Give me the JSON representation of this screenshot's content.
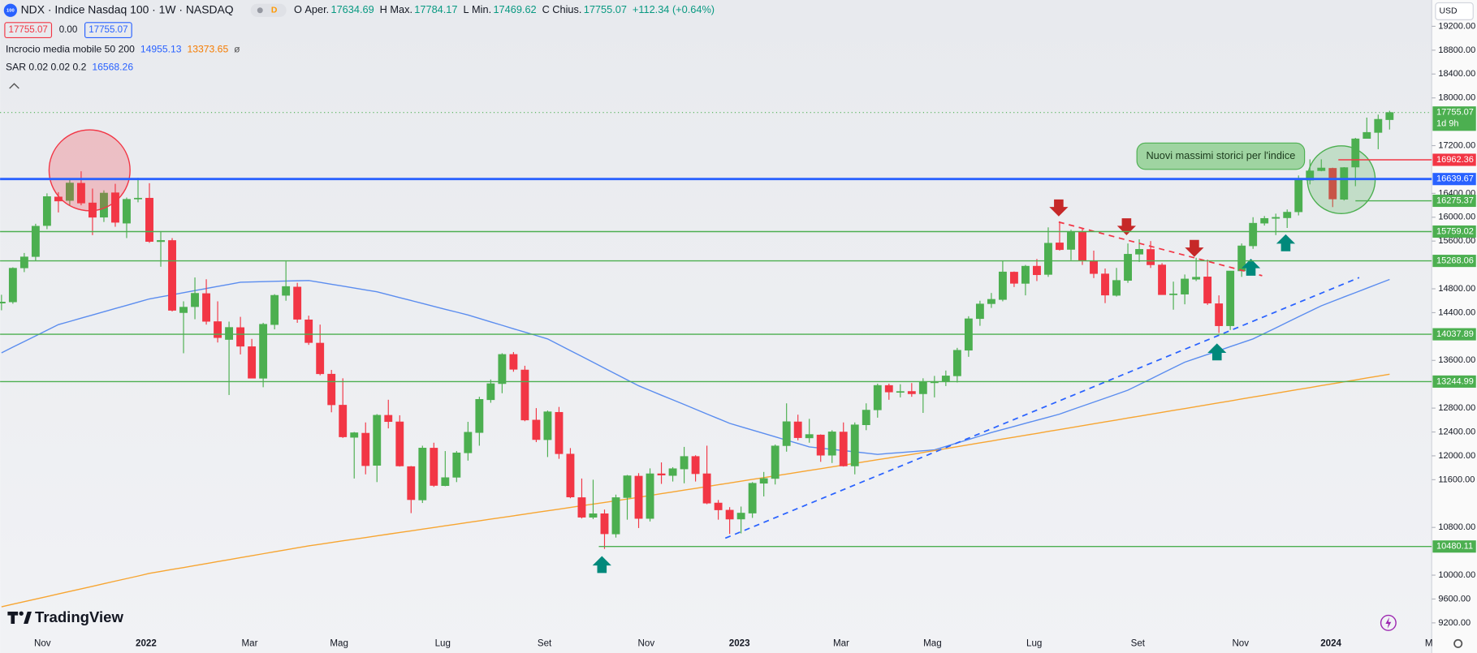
{
  "chart_data": {
    "type": "candlestick",
    "symbol": "NDX · Indice Nasdaq 100 · 1W · NASDAQ",
    "ohlc_legend": [
      {
        "key": "O",
        "label": "Aper.",
        "value": 17634.69
      },
      {
        "key": "H",
        "label": "Max.",
        "value": 17784.17
      },
      {
        "key": "L",
        "label": "Min.",
        "value": 17469.62
      },
      {
        "key": "C",
        "label": "Chius.",
        "value": 17755.07
      }
    ],
    "change": "+112.34 (+0.64%)",
    "price_boxes": [
      "17755.07",
      "0.00",
      "17755.07"
    ],
    "indicators": [
      {
        "name": "Incrocio media mobile 50 200",
        "values": [
          "14955.13",
          "13373.65",
          "ø"
        ],
        "colors": [
          "#2962ff",
          "#f57c00",
          "#555"
        ]
      },
      {
        "name": "SAR 0.02 0.02 0.2",
        "values": [
          "16568.26"
        ],
        "colors": [
          "#2962ff"
        ]
      }
    ],
    "currency": "USD",
    "annotation": "Nuovi massimi storici per l'indice",
    "brand": "TradingView",
    "x_labels": [
      "Nov",
      "2022",
      "Mar",
      "Mag",
      "Lug",
      "Set",
      "Nov",
      "2023",
      "Mar",
      "Mag",
      "Lug",
      "Set",
      "Nov",
      "2024",
      "M"
    ],
    "ylim": [
      8916,
      19641
    ],
    "yticks": [
      {
        "value": 19200,
        "label": "19200.00"
      },
      {
        "value": 18800,
        "label": "18800.00"
      },
      {
        "value": 18400,
        "label": "18400.00"
      },
      {
        "value": 18000,
        "label": "18000.00"
      },
      {
        "value": 17200,
        "label": "17200.00"
      },
      {
        "value": 16400,
        "label": "16400.00"
      },
      {
        "value": 16000,
        "label": "16000.00"
      },
      {
        "value": 15600,
        "label": "15600.00"
      },
      {
        "value": 14800,
        "label": "14800.00"
      },
      {
        "value": 14400,
        "label": "14400.00"
      },
      {
        "value": 13600,
        "label": "13600.00"
      },
      {
        "value": 12800,
        "label": "12800.00"
      },
      {
        "value": 12400,
        "label": "12400.00"
      },
      {
        "value": 12000,
        "label": "12000.00"
      },
      {
        "value": 11600,
        "label": "11600.00"
      },
      {
        "value": 10800,
        "label": "10800.00"
      },
      {
        "value": 10000,
        "label": "10000.00"
      },
      {
        "value": 9600,
        "label": "9600.00"
      },
      {
        "value": 9200,
        "label": "9200.00"
      }
    ],
    "up_color": "#4caf50",
    "down_color": "#f23645",
    "candles": [
      [
        14560,
        14700,
        14440,
        14579
      ],
      [
        14580,
        15160,
        14550,
        15146
      ],
      [
        15150,
        15400,
        15080,
        15335
      ],
      [
        15340,
        15890,
        15270,
        15850
      ],
      [
        15860,
        16400,
        15800,
        16346
      ],
      [
        16340,
        16420,
        16080,
        16271
      ],
      [
        16280,
        16640,
        16190,
        16574
      ],
      [
        16570,
        16770,
        16200,
        16237
      ],
      [
        16240,
        16480,
        15700,
        15999
      ],
      [
        16000,
        16450,
        15920,
        16405
      ],
      [
        16410,
        16560,
        15840,
        15914
      ],
      [
        15900,
        16330,
        15650,
        16301
      ],
      [
        16310,
        16660,
        16250,
        16320
      ],
      [
        16320,
        16570,
        15570,
        15593
      ],
      [
        15590,
        15760,
        15170,
        15611
      ],
      [
        15610,
        15650,
        14420,
        14439
      ],
      [
        14400,
        14590,
        13720,
        14493
      ],
      [
        14500,
        14990,
        14290,
        14725
      ],
      [
        14720,
        14960,
        14200,
        14254
      ],
      [
        14250,
        14590,
        13900,
        13981
      ],
      [
        13950,
        14250,
        13020,
        14153
      ],
      [
        14150,
        14330,
        13700,
        13837
      ],
      [
        13830,
        13960,
        13300,
        13301
      ],
      [
        13300,
        14230,
        13150,
        14206
      ],
      [
        14200,
        14710,
        14120,
        14691
      ],
      [
        14690,
        15260,
        14600,
        14839
      ],
      [
        14830,
        14900,
        14230,
        14289
      ],
      [
        14280,
        14350,
        13860,
        13898
      ],
      [
        13890,
        14200,
        13350,
        13375
      ],
      [
        13370,
        13440,
        12730,
        12855
      ],
      [
        12850,
        13300,
        12300,
        12318
      ],
      [
        12310,
        12400,
        11620,
        12387
      ],
      [
        12380,
        12560,
        11690,
        11835
      ],
      [
        11840,
        12700,
        11560,
        12681
      ],
      [
        12680,
        12940,
        12460,
        12574
      ],
      [
        12570,
        12680,
        11820,
        11830
      ],
      [
        11820,
        11830,
        11040,
        11265
      ],
      [
        11260,
        12170,
        11210,
        12131
      ],
      [
        12130,
        12220,
        11480,
        11503
      ],
      [
        11500,
        12080,
        11490,
        11635
      ],
      [
        11640,
        12080,
        11560,
        12050
      ],
      [
        12050,
        12570,
        11920,
        12396
      ],
      [
        12390,
        12990,
        12170,
        12947
      ],
      [
        12940,
        13280,
        12890,
        13210
      ],
      [
        13210,
        13720,
        13050,
        13700
      ],
      [
        13700,
        13740,
        13410,
        13450
      ],
      [
        13440,
        13510,
        12580,
        12600
      ],
      [
        12600,
        12800,
        12230,
        12272
      ],
      [
        12270,
        12760,
        11980,
        12739
      ],
      [
        12730,
        12820,
        11950,
        12035
      ],
      [
        12030,
        12130,
        11290,
        11310
      ],
      [
        11300,
        11620,
        10950,
        10971
      ],
      [
        10970,
        11600,
        10940,
        11030
      ],
      [
        11030,
        11100,
        10440,
        10693
      ],
      [
        10690,
        11350,
        10630,
        11300
      ],
      [
        11300,
        11680,
        10930,
        11666
      ],
      [
        11660,
        11710,
        10790,
        10950
      ],
      [
        10950,
        11790,
        10900,
        11700
      ],
      [
        11700,
        11890,
        11530,
        11677
      ],
      [
        11670,
        11810,
        11570,
        11785
      ],
      [
        11780,
        12150,
        11540,
        11990
      ],
      [
        11990,
        12010,
        11570,
        11700
      ],
      [
        11700,
        12170,
        11190,
        11207
      ],
      [
        11210,
        11260,
        10930,
        11094
      ],
      [
        11090,
        11140,
        10690,
        10939
      ],
      [
        10940,
        11150,
        10700,
        11041
      ],
      [
        11040,
        11560,
        10960,
        11541
      ],
      [
        11540,
        11730,
        11320,
        11620
      ],
      [
        11620,
        12190,
        11520,
        12166
      ],
      [
        12170,
        12880,
        12070,
        12573
      ],
      [
        12570,
        12690,
        12260,
        12304
      ],
      [
        12300,
        12620,
        12220,
        12358
      ],
      [
        12350,
        12360,
        11900,
        12010
      ],
      [
        12010,
        12430,
        11880,
        12402
      ],
      [
        12400,
        12560,
        11820,
        11830
      ],
      [
        11830,
        12560,
        11690,
        12520
      ],
      [
        12520,
        12880,
        12430,
        12767
      ],
      [
        12770,
        13210,
        12640,
        13181
      ],
      [
        13180,
        13210,
        12940,
        13070
      ],
      [
        13070,
        13200,
        12980,
        13079
      ],
      [
        13080,
        13220,
        12990,
        13040
      ],
      [
        13040,
        13300,
        12720,
        13246
      ],
      [
        13240,
        13340,
        12980,
        13240
      ],
      [
        13240,
        13430,
        13170,
        13340
      ],
      [
        13340,
        13810,
        13230,
        13770
      ],
      [
        13770,
        14340,
        13660,
        14298
      ],
      [
        14300,
        14600,
        14180,
        14546
      ],
      [
        14550,
        14730,
        14480,
        14624
      ],
      [
        14620,
        15270,
        14590,
        15083
      ],
      [
        15080,
        15090,
        14830,
        14891
      ],
      [
        14890,
        15200,
        14690,
        15180
      ],
      [
        15180,
        15300,
        14930,
        15035
      ],
      [
        15040,
        15830,
        15000,
        15565
      ],
      [
        15570,
        15930,
        15440,
        15456
      ],
      [
        15460,
        15790,
        15280,
        15750
      ],
      [
        15750,
        15820,
        15200,
        15274
      ],
      [
        15270,
        15440,
        14980,
        15055
      ],
      [
        15050,
        15140,
        14560,
        14694
      ],
      [
        14690,
        15150,
        14670,
        14941
      ],
      [
        14940,
        15560,
        14900,
        15380
      ],
      [
        15380,
        15630,
        15250,
        15462
      ],
      [
        15460,
        15600,
        15150,
        15202
      ],
      [
        15200,
        15230,
        14700,
        14701
      ],
      [
        14700,
        14920,
        14450,
        14715
      ],
      [
        14710,
        15040,
        14540,
        14965
      ],
      [
        14960,
        15320,
        14930,
        14995
      ],
      [
        15000,
        15290,
        14530,
        14560
      ],
      [
        14550,
        14690,
        14060,
        14180
      ],
      [
        14180,
        15100,
        14110,
        15099
      ],
      [
        15100,
        15560,
        15000,
        15520
      ],
      [
        15520,
        16000,
        15470,
        15900
      ],
      [
        15900,
        16020,
        15860,
        15980
      ],
      [
        15980,
        16060,
        15700,
        15998
      ],
      [
        15990,
        16130,
        15820,
        16085
      ],
      [
        16090,
        16700,
        16030,
        16623
      ],
      [
        16620,
        16970,
        16550,
        16777
      ],
      [
        16780,
        16970,
        16770,
        16826
      ],
      [
        16820,
        16830,
        16170,
        16305
      ],
      [
        16300,
        16840,
        16280,
        16832
      ],
      [
        16840,
        17330,
        16520,
        17314
      ],
      [
        17320,
        17670,
        17320,
        17422
      ],
      [
        17420,
        17720,
        17140,
        17642
      ],
      [
        17634.69,
        17784.17,
        17469.62,
        17755.07
      ]
    ],
    "moving_averages": [
      {
        "color": "#5b8def",
        "values": [
          13727,
          13822,
          13916,
          14011,
          14105,
          14200,
          14254,
          14308,
          14361,
          14415,
          14469,
          14523,
          14576,
          14630,
          14665,
          14700,
          14735,
          14770,
          14805,
          14840,
          14875,
          14910,
          14915,
          14920,
          14925,
          14930,
          14935,
          14940,
          14908,
          14877,
          14845,
          14813,
          14782,
          14750,
          14701,
          14652,
          14604,
          14555,
          14506,
          14457,
          14409,
          14360,
          14303,
          14246,
          14189,
          14131,
          14074,
          14017,
          13960,
          13862,
          13764,
          13666,
          13568,
          13469,
          13371,
          13273,
          13175,
          13096,
          13017,
          12939,
          12860,
          12781,
          12702,
          12624,
          12545,
          12489,
          12432,
          12376,
          12320,
          12263,
          12207,
          12150,
          12129,
          12108,
          12088,
          12067,
          12046,
          12025,
          12040,
          12055,
          12070,
          12085,
          12100,
          12158,
          12216,
          12274,
          12332,
          12390,
          12442,
          12493,
          12545,
          12597,
          12648,
          12700,
          12767,
          12833,
          12900,
          12967,
          13033,
          13100,
          13194,
          13288,
          13382,
          13476,
          13570,
          13635,
          13700,
          13765,
          13830,
          13895,
          13960,
          14053,
          14145,
          14238,
          14330,
          14423,
          14515,
          14589,
          14663,
          14736,
          14810,
          14884,
          14957
        ]
      },
      {
        "color": "#f7a531",
        "values": [
          9470,
          9513,
          9556,
          9599,
          9642,
          9685,
          9728,
          9771,
          9814,
          9857,
          9900,
          9943,
          9986,
          10029,
          10062,
          10095,
          10128,
          10161,
          10194,
          10227,
          10260,
          10293,
          10326,
          10359,
          10392,
          10425,
          10458,
          10491,
          10519,
          10547,
          10575,
          10603,
          10631,
          10659,
          10687,
          10715,
          10743,
          10771,
          10799,
          10827,
          10855,
          10883,
          10911,
          10939,
          10967,
          10995,
          11023,
          11051,
          11079,
          11107,
          11135,
          11163,
          11191,
          11219,
          11247,
          11275,
          11305,
          11335,
          11365,
          11395,
          11425,
          11455,
          11485,
          11515,
          11545,
          11575,
          11605,
          11635,
          11665,
          11695,
          11725,
          11755,
          11785,
          11815,
          11845,
          11875,
          11905,
          11935,
          11965,
          11995,
          12025,
          12057,
          12089,
          12121,
          12153,
          12185,
          12217,
          12249,
          12281,
          12313,
          12345,
          12377,
          12409,
          12441,
          12473,
          12505,
          12537,
          12569,
          12601,
          12633,
          12665,
          12697,
          12729,
          12761,
          12793,
          12825,
          12857,
          12889,
          12921,
          12953,
          12985,
          13017,
          13049,
          13081,
          13113,
          13145,
          13177,
          13209,
          13241,
          13273,
          13305,
          13337,
          13369
        ]
      }
    ],
    "levels": [
      {
        "value": 16962.36,
        "color": "#f23645"
      },
      {
        "value": 16639.67,
        "color": "#2962ff"
      },
      {
        "value": 16275.37,
        "color": "#4caf50"
      },
      {
        "value": 15759.02,
        "color": "#4caf50"
      },
      {
        "value": 15268.06,
        "color": "#4caf50"
      },
      {
        "value": 14037.89,
        "color": "#4caf50"
      },
      {
        "value": 13244.99,
        "color": "#4caf50"
      },
      {
        "value": 10480.11,
        "color": "#4caf50"
      }
    ],
    "last_price": {
      "value": 17755.07,
      "countdown": "1d 9h",
      "color": "#4caf50"
    }
  }
}
